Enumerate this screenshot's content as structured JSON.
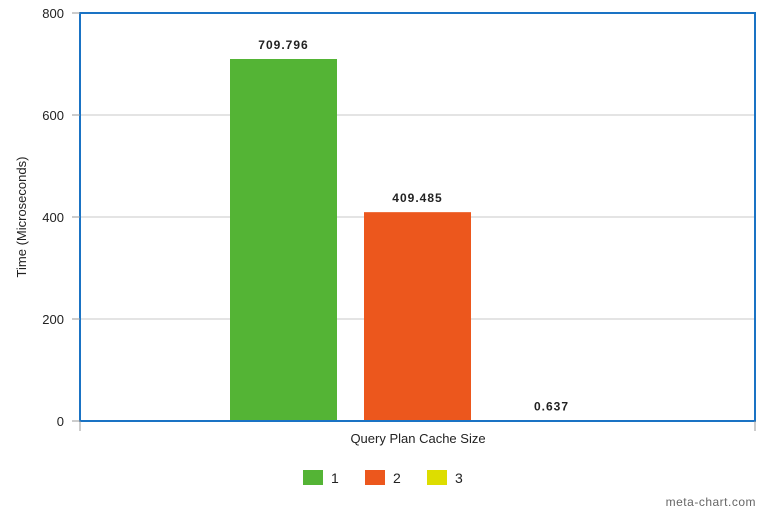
{
  "chart_data": {
    "type": "bar",
    "ylabel": "Time (Microseconds)",
    "xlabel": "Query Plan Cache Size",
    "ylim": [
      0,
      800
    ],
    "yticks": [
      0,
      200,
      400,
      600,
      800
    ],
    "grid": true,
    "legend_position": "bottom",
    "series": [
      {
        "name": "1",
        "value": 709.796,
        "label": "709.796",
        "color": "#54b435"
      },
      {
        "name": "2",
        "value": 409.485,
        "label": "409.485",
        "color": "#ec571d"
      },
      {
        "name": "3",
        "value": 0.637,
        "label": "0.637",
        "color": "#dddd00"
      }
    ]
  },
  "colors": {
    "frame": "#1a73c4",
    "grid": "#c8c8c8"
  },
  "watermark": "meta-chart.com"
}
